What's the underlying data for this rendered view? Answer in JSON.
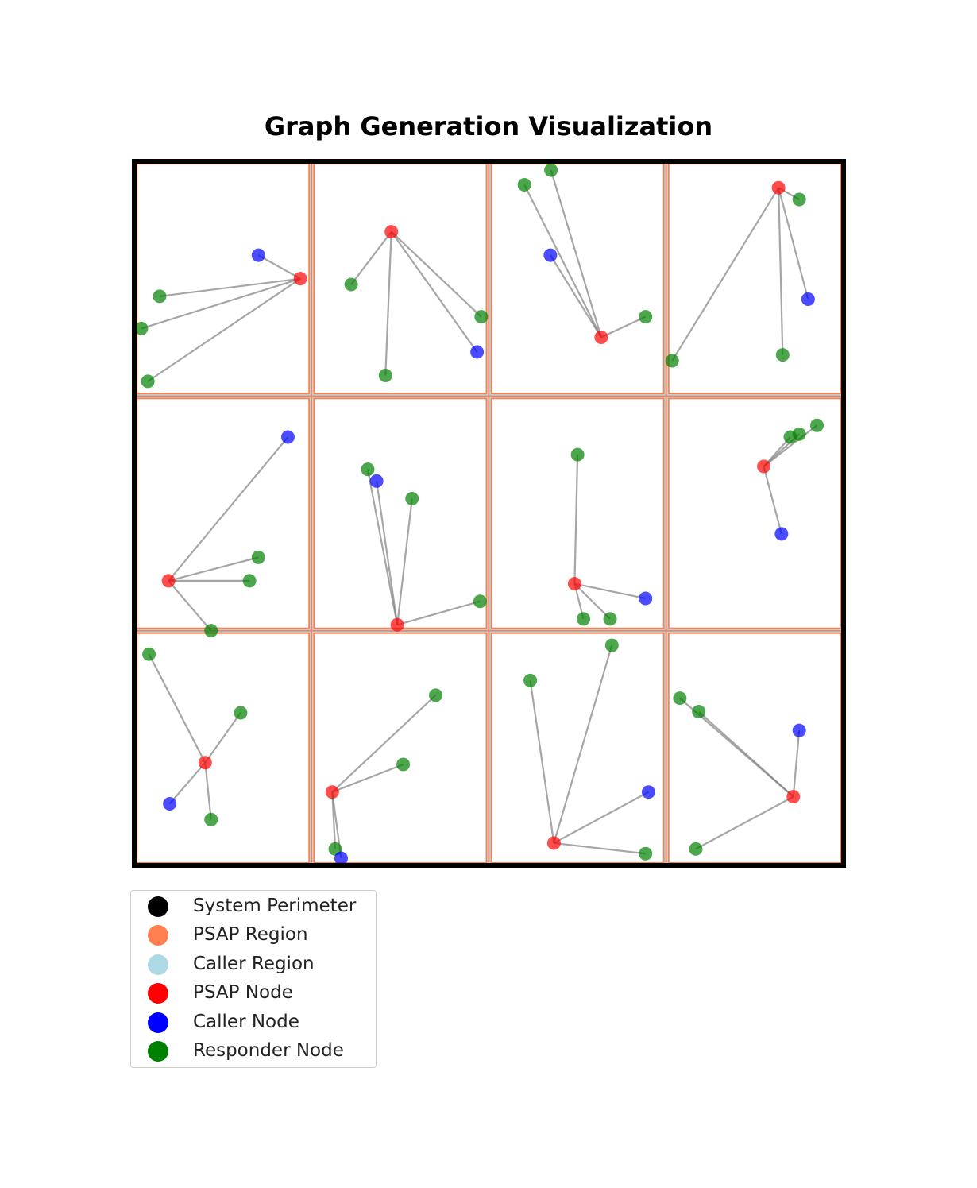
{
  "chart_data": {
    "type": "scatter",
    "title": "Graph Generation Visualization",
    "xlim": [
      0,
      12
    ],
    "ylim": [
      0,
      12
    ],
    "grid": false,
    "legend_placement": "bottom-left-outside",
    "colors": {
      "perimeter": "#000000",
      "psap_region": "#ff7f50",
      "caller_region": "#add8e6",
      "psap_node": "#ff0000",
      "caller_node": "#0000ff",
      "responder_node": "#008000",
      "edge": "#808080"
    },
    "regions": {
      "columns": [
        0,
        3,
        6,
        9,
        12
      ],
      "rows": [
        0,
        4,
        8,
        12
      ]
    },
    "legend": [
      {
        "label": "System Perimeter",
        "color": "#000000"
      },
      {
        "label": "PSAP Region",
        "color": "#ff7f50"
      },
      {
        "label": "Caller Region",
        "color": "#add8e6"
      },
      {
        "label": "PSAP Node",
        "color": "#ff0000"
      },
      {
        "label": "Caller Node",
        "color": "#0000ff"
      },
      {
        "label": "Responder Node",
        "color": "#008000"
      }
    ],
    "clusters": [
      {
        "psap": [
          2.81,
          10.0
        ],
        "callers": [
          [
            2.1,
            10.4
          ]
        ],
        "responders": [
          [
            0.43,
            9.7
          ],
          [
            0.12,
            9.15
          ],
          [
            0.23,
            8.25
          ]
        ]
      },
      {
        "psap": [
          4.35,
          10.8
        ],
        "callers": [
          [
            5.8,
            8.75
          ]
        ],
        "responders": [
          [
            3.67,
            9.9
          ],
          [
            5.87,
            9.35
          ],
          [
            4.25,
            8.35
          ]
        ]
      },
      {
        "psap": [
          7.9,
          9.0
        ],
        "callers": [
          [
            7.04,
            10.4
          ]
        ],
        "responders": [
          [
            6.6,
            11.6
          ],
          [
            7.05,
            11.85
          ],
          [
            8.65,
            9.35
          ]
        ]
      },
      {
        "psap": [
          10.9,
          11.55
        ],
        "callers": [
          [
            11.4,
            9.65
          ]
        ],
        "responders": [
          [
            11.25,
            11.35
          ],
          [
            10.97,
            8.7
          ],
          [
            9.1,
            8.6
          ]
        ]
      },
      {
        "psap": [
          0.58,
          4.85
        ],
        "callers": [
          [
            2.6,
            7.3
          ]
        ],
        "responders": [
          [
            2.1,
            5.25
          ],
          [
            1.95,
            4.85
          ],
          [
            1.3,
            4.0
          ]
        ]
      },
      {
        "psap": [
          4.45,
          4.1
        ],
        "callers": [
          [
            4.1,
            6.55
          ]
        ],
        "responders": [
          [
            3.95,
            6.75
          ],
          [
            4.7,
            6.25
          ],
          [
            5.85,
            4.5
          ]
        ]
      },
      {
        "psap": [
          7.45,
          4.8
        ],
        "callers": [
          [
            8.65,
            4.55
          ]
        ],
        "responders": [
          [
            7.5,
            7.0
          ],
          [
            7.6,
            4.2
          ],
          [
            8.05,
            4.2
          ]
        ]
      },
      {
        "psap": [
          10.65,
          6.8
        ],
        "callers": [
          [
            10.95,
            5.65
          ]
        ],
        "responders": [
          [
            11.1,
            7.3
          ],
          [
            11.25,
            7.35
          ],
          [
            11.55,
            7.5
          ]
        ]
      },
      {
        "psap": [
          1.2,
          1.75
        ],
        "callers": [
          [
            0.6,
            1.05
          ]
        ],
        "responders": [
          [
            0.25,
            3.6
          ],
          [
            1.8,
            2.6
          ],
          [
            1.3,
            0.78
          ]
        ]
      },
      {
        "psap": [
          3.35,
          1.25
        ],
        "callers": [
          [
            3.5,
            0.12
          ]
        ],
        "responders": [
          [
            5.1,
            2.9
          ],
          [
            4.55,
            1.72
          ],
          [
            3.4,
            0.28
          ]
        ]
      },
      {
        "psap": [
          7.1,
          0.38
        ],
        "callers": [
          [
            8.7,
            1.25
          ]
        ],
        "responders": [
          [
            6.7,
            3.15
          ],
          [
            8.08,
            3.75
          ],
          [
            8.65,
            0.2
          ]
        ]
      },
      {
        "psap": [
          11.15,
          1.17
        ],
        "callers": [
          [
            11.25,
            2.3
          ]
        ],
        "responders": [
          [
            9.23,
            2.85
          ],
          [
            9.55,
            2.62
          ],
          [
            9.5,
            0.28
          ]
        ]
      }
    ]
  }
}
